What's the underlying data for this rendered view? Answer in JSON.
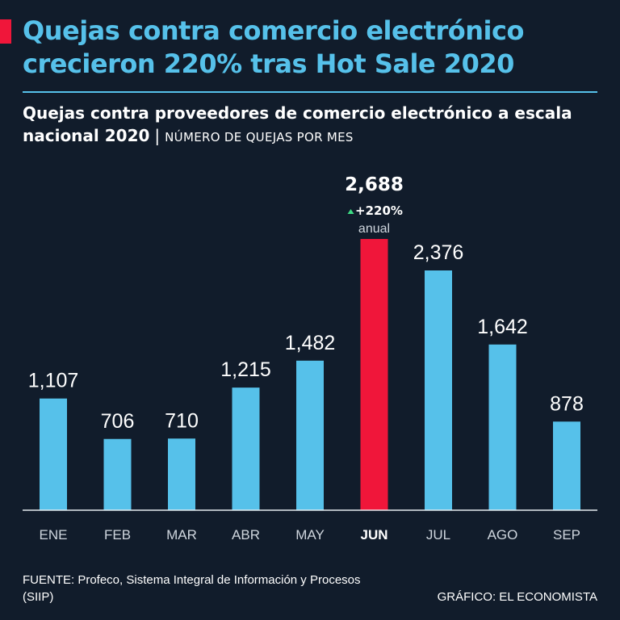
{
  "headline": "Quejas contra comercio electrónico crecieron 220% tras Hot Sale 2020",
  "subtitle": "Quejas contra proveedores de comercio electrónico a escala nacional 2020",
  "subtitle_separator": "|",
  "units_label": "NÚMERO DE QUEJAS POR MES",
  "source": "FUENTE: Profeco, Sistema Integral de Información y Procesos (SIIP)",
  "credit": "GRÁFICO: EL ECONOMISTA",
  "colors": {
    "background": "#111c2b",
    "headline": "#56c1ea",
    "bar": "#56c1ea",
    "highlight_bar": "#f0163a",
    "accent": "#f0163a",
    "change_arrow": "#3ddc84",
    "text": "#ffffff",
    "axis_label": "#cfd6de"
  },
  "chart_data": {
    "type": "bar",
    "categories": [
      "ENE",
      "FEB",
      "MAR",
      "ABR",
      "MAY",
      "JUN",
      "JUL",
      "AGO",
      "SEP"
    ],
    "values": [
      1107,
      706,
      710,
      1215,
      1482,
      2688,
      2376,
      1642,
      878
    ],
    "value_labels": [
      "1,107",
      "706",
      "710",
      "1,215",
      "1,482",
      "2,688",
      "2,376",
      "1,642",
      "878"
    ],
    "highlight_index": 5,
    "highlight_annotation": {
      "change": "+220%",
      "period": "anual"
    },
    "title": "",
    "xlabel": "",
    "ylabel": "",
    "ylim": [
      0,
      2688
    ],
    "grid": false,
    "legend": "none"
  }
}
